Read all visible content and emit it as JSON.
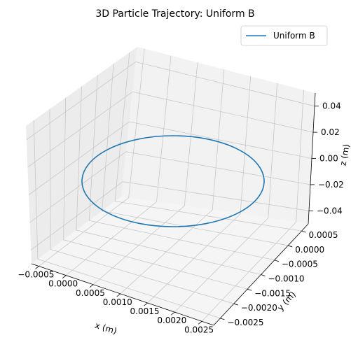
{
  "chart_data": {
    "type": "line",
    "projection": "3d",
    "title": "3D Particle Trajectory: Uniform B",
    "xlabel": "x (m)",
    "ylabel": "y (m)",
    "zlabel": "z (m)",
    "xlim": [
      -0.0006,
      0.0025
    ],
    "ylim": [
      -0.0025,
      0.0006
    ],
    "zlim": [
      -0.05,
      0.05
    ],
    "xticks": [
      "−0.0005",
      "0.0000",
      "0.0005",
      "0.0010",
      "0.0015",
      "0.0020",
      "0.0025"
    ],
    "yticks": [
      "−0.0025",
      "−0.0020",
      "−0.0015",
      "−0.0010",
      "−0.0005",
      "0.0000",
      "0.0005"
    ],
    "zticks": [
      "−0.04",
      "−0.02",
      "0.00",
      "0.02",
      "0.04"
    ],
    "grid": true,
    "legend_position": "upper-right",
    "series": [
      {
        "name": "Uniform B",
        "color": "#1f77b4",
        "shape": "circle",
        "center": {
          "x": 0.00095,
          "y": -0.00095,
          "z": 0.0
        },
        "radius": 0.00135
      }
    ]
  }
}
